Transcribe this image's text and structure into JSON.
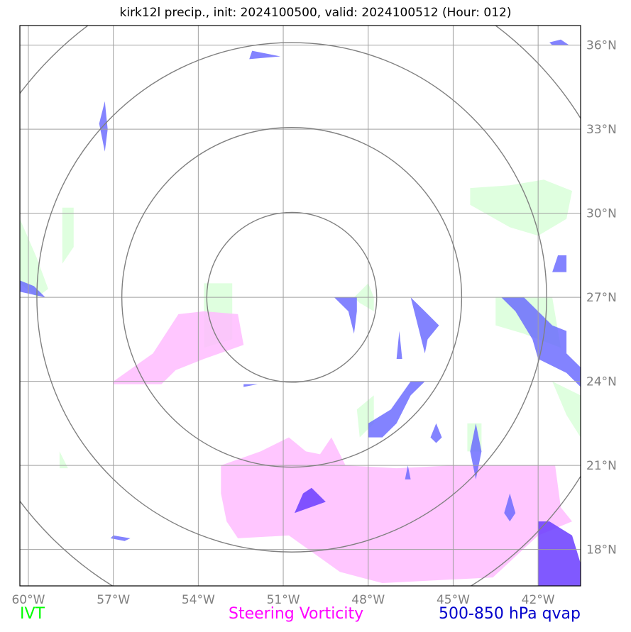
{
  "title": "kirk12l precip., init: 2024100500, valid: 2024100512 (Hour: 012)",
  "map": {
    "lon_min": -60.3,
    "lon_max": -40.5,
    "lat_min": 16.7,
    "lat_max": 36.7,
    "grid_lons": [
      -60,
      -57,
      -54,
      -51,
      -48,
      -45,
      -42
    ],
    "grid_lats": [
      18,
      21,
      24,
      27,
      30,
      33,
      36
    ],
    "lon_labels": [
      "60°W",
      "57°W",
      "54°W",
      "51°W",
      "48°W",
      "45°W",
      "42°W"
    ],
    "lat_labels": [
      "18°N",
      "21°N",
      "24°N",
      "27°N",
      "30°N",
      "33°N",
      "36°N"
    ],
    "range_rings": {
      "center": [
        -50.7,
        27.0
      ],
      "radii_deg": [
        3,
        6,
        9,
        12
      ]
    },
    "colors": {
      "ivt": "#dcffdc",
      "vorticity": "#ffbcff",
      "qvap": "#6464ff",
      "qvap_dark": "#6a3cff",
      "grid": "#a0a0a0",
      "rings": "#808080"
    },
    "layers": {
      "ivt": [
        [
          [
            -60.3,
            29.8
          ],
          [
            -59.7,
            28.4
          ],
          [
            -59.3,
            27.3
          ],
          [
            -59.7,
            27.0
          ],
          [
            -60.3,
            27.5
          ]
        ],
        [
          [
            -58.8,
            28.2
          ],
          [
            -58.4,
            28.8
          ],
          [
            -58.4,
            30.2
          ],
          [
            -58.8,
            30.2
          ]
        ],
        [
          [
            -53.8,
            27.5
          ],
          [
            -52.8,
            27.5
          ],
          [
            -52.8,
            25.5
          ],
          [
            -53.8,
            25.2
          ]
        ],
        [
          [
            -48.3,
            26.8
          ],
          [
            -47.8,
            26.5
          ],
          [
            -47.8,
            27.0
          ],
          [
            -48.0,
            27.5
          ],
          [
            -48.5,
            27.0
          ]
        ],
        [
          [
            -44.4,
            30.9
          ],
          [
            -43.0,
            31.0
          ],
          [
            -41.8,
            31.2
          ],
          [
            -40.8,
            30.8
          ],
          [
            -41.0,
            29.8
          ],
          [
            -42.0,
            29.2
          ],
          [
            -43.0,
            29.5
          ],
          [
            -44.4,
            30.3
          ]
        ],
        [
          [
            -43.5,
            27.0
          ],
          [
            -41.5,
            27.0
          ],
          [
            -41.2,
            25.2
          ],
          [
            -42.5,
            25.7
          ],
          [
            -43.5,
            26.0
          ]
        ],
        [
          [
            -41.5,
            24.0
          ],
          [
            -40.5,
            23.5
          ],
          [
            -40.5,
            22.0
          ],
          [
            -41.0,
            22.8
          ]
        ],
        [
          [
            -48.3,
            22.0
          ],
          [
            -47.8,
            22.5
          ],
          [
            -47.8,
            23.5
          ],
          [
            -48.4,
            23.0
          ]
        ],
        [
          [
            -58.9,
            21.5
          ],
          [
            -58.6,
            20.9
          ],
          [
            -58.9,
            20.9
          ]
        ],
        [
          [
            -44.5,
            22.5
          ],
          [
            -44.0,
            22.5
          ],
          [
            -44.0,
            21.5
          ],
          [
            -44.5,
            21.5
          ]
        ]
      ],
      "vorticity": [
        [
          [
            -57.0,
            24.0
          ],
          [
            -55.6,
            25.0
          ],
          [
            -54.7,
            26.4
          ],
          [
            -53.8,
            26.5
          ],
          [
            -52.6,
            26.4
          ],
          [
            -52.4,
            25.3
          ],
          [
            -53.8,
            24.8
          ],
          [
            -54.8,
            24.4
          ],
          [
            -55.3,
            23.9
          ],
          [
            -57.0,
            23.9
          ]
        ],
        [
          [
            -53.2,
            21.0
          ],
          [
            -51.8,
            21.5
          ],
          [
            -50.8,
            22.0
          ],
          [
            -50.2,
            21.5
          ],
          [
            -49.7,
            21.4
          ],
          [
            -49.3,
            22.0
          ],
          [
            -48.8,
            21.0
          ],
          [
            -47.0,
            20.9
          ],
          [
            -45.0,
            21.0
          ],
          [
            -41.4,
            21.0
          ],
          [
            -41.2,
            19.5
          ],
          [
            -40.8,
            19.0
          ],
          [
            -42.0,
            18.5
          ],
          [
            -43.6,
            17.0
          ],
          [
            -47.5,
            16.8
          ],
          [
            -49.0,
            17.2
          ],
          [
            -50.8,
            18.5
          ],
          [
            -52.6,
            18.4
          ],
          [
            -53.0,
            19.0
          ],
          [
            -53.2,
            20.0
          ]
        ]
      ],
      "qvap": [
        [
          [
            -60.3,
            27.6
          ],
          [
            -59.8,
            27.4
          ],
          [
            -59.4,
            27.0
          ],
          [
            -60.3,
            27.2
          ]
        ],
        [
          [
            -57.3,
            32.2
          ],
          [
            -57.2,
            33.0
          ],
          [
            -57.3,
            34.0
          ],
          [
            -57.5,
            33.2
          ]
        ],
        [
          [
            -52.2,
            35.5
          ],
          [
            -51.1,
            35.6
          ],
          [
            -52.1,
            35.8
          ]
        ],
        [
          [
            -41.5,
            36.0
          ],
          [
            -40.9,
            36.0
          ],
          [
            -41.2,
            36.2
          ],
          [
            -41.6,
            36.1
          ]
        ],
        [
          [
            -49.2,
            27.0
          ],
          [
            -48.4,
            27.0
          ],
          [
            -48.4,
            26.5
          ],
          [
            -48.5,
            25.7
          ],
          [
            -48.7,
            26.5
          ]
        ],
        [
          [
            -46.5,
            27.0
          ],
          [
            -46.0,
            26.5
          ],
          [
            -45.5,
            26.0
          ],
          [
            -45.9,
            25.5
          ],
          [
            -46.0,
            25.0
          ],
          [
            -46.3,
            26.2
          ]
        ],
        [
          [
            -46.9,
            25.8
          ],
          [
            -46.8,
            24.8
          ],
          [
            -47.0,
            24.8
          ]
        ],
        [
          [
            -41.3,
            28.5
          ],
          [
            -41.0,
            28.5
          ],
          [
            -41.0,
            27.9
          ],
          [
            -41.5,
            27.9
          ]
        ],
        [
          [
            -43.3,
            27.0
          ],
          [
            -42.5,
            27.0
          ],
          [
            -41.5,
            26.0
          ],
          [
            -41.0,
            25.8
          ],
          [
            -41.0,
            25.0
          ],
          [
            -40.5,
            24.5
          ],
          [
            -40.5,
            23.8
          ],
          [
            -41.0,
            24.3
          ],
          [
            -42.0,
            24.8
          ],
          [
            -42.2,
            25.5
          ],
          [
            -42.8,
            26.5
          ]
        ],
        [
          [
            -46.5,
            24.0
          ],
          [
            -46.0,
            24.0
          ],
          [
            -46.5,
            23.5
          ],
          [
            -47.0,
            22.5
          ],
          [
            -47.5,
            22.0
          ],
          [
            -48.0,
            22.0
          ],
          [
            -48.0,
            22.5
          ],
          [
            -47.2,
            23.0
          ]
        ],
        [
          [
            -45.6,
            22.5
          ],
          [
            -45.4,
            22.0
          ],
          [
            -45.6,
            21.8
          ],
          [
            -45.8,
            22.0
          ]
        ],
        [
          [
            -44.2,
            22.5
          ],
          [
            -44.0,
            21.5
          ],
          [
            -44.2,
            20.5
          ],
          [
            -44.4,
            21.5
          ]
        ],
        [
          [
            -43.0,
            20.0
          ],
          [
            -42.8,
            19.3
          ],
          [
            -43.0,
            19.0
          ],
          [
            -43.2,
            19.3
          ]
        ],
        [
          [
            -46.6,
            21.0
          ],
          [
            -46.5,
            20.5
          ],
          [
            -46.7,
            20.5
          ]
        ],
        [
          [
            -57.0,
            18.5
          ],
          [
            -56.4,
            18.4
          ],
          [
            -56.6,
            18.3
          ],
          [
            -57.1,
            18.4
          ]
        ],
        [
          [
            -52.4,
            23.9
          ],
          [
            -51.9,
            23.9
          ],
          [
            -52.4,
            23.8
          ]
        ]
      ],
      "qvap_dark": [
        [
          [
            -50.6,
            19.3
          ],
          [
            -49.5,
            19.7
          ],
          [
            -50.0,
            20.2
          ],
          [
            -50.3,
            20.0
          ]
        ],
        [
          [
            -42.0,
            17.8
          ],
          [
            -42.0,
            19.0
          ],
          [
            -41.6,
            19.0
          ],
          [
            -40.8,
            18.5
          ],
          [
            -40.5,
            17.5
          ],
          [
            -40.5,
            16.7
          ],
          [
            -42.0,
            16.7
          ]
        ]
      ]
    }
  },
  "legend": {
    "ivt_label": "IVT",
    "vorticity_label": "Steering Vorticity",
    "qvap_label": "500-850 hPa qvap",
    "ivt_color": "#00ff00",
    "vorticity_color": "#ff00ff",
    "qvap_color": "#0000cc"
  }
}
